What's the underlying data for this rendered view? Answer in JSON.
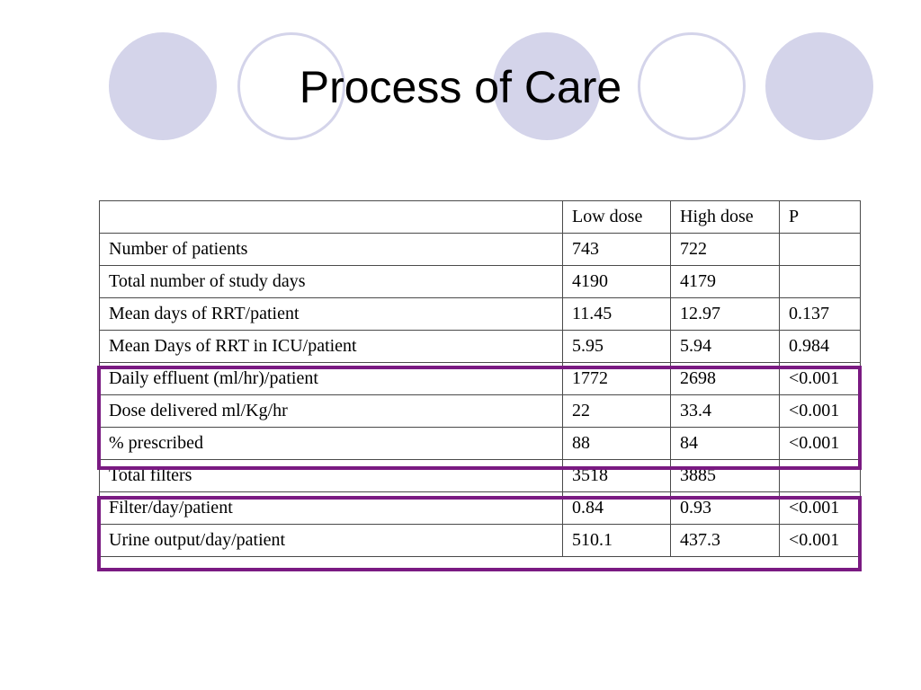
{
  "slide": {
    "title": "Process of Care"
  },
  "table": {
    "headers": [
      "",
      "Low dose",
      "High dose",
      "P"
    ],
    "rows": [
      [
        "Number of patients",
        "743",
        "722",
        ""
      ],
      [
        "Total number of study days",
        "4190",
        "4179",
        ""
      ],
      [
        "Mean days of RRT/patient",
        "11.45",
        "12.97",
        "0.137"
      ],
      [
        "Mean Days of RRT in ICU/patient",
        "5.95",
        "5.94",
        "0.984"
      ],
      [
        "Daily effluent (ml/hr)/patient",
        "1772",
        "2698",
        "<0.001"
      ],
      [
        "Dose delivered ml/Kg/hr",
        "22",
        "33.4",
        "<0.001"
      ],
      [
        "% prescribed",
        "88",
        "84",
        "<0.001"
      ],
      [
        "Total filters",
        "3518",
        "3885",
        ""
      ],
      [
        "Filter/day/patient",
        "0.84",
        "0.93",
        "<0.001"
      ],
      [
        "Urine output/day/patient",
        "510.1",
        "437.3",
        "<0.001"
      ]
    ]
  },
  "colors": {
    "circle_fill": "#d4d4ea",
    "highlight_border": "#7a1a82"
  }
}
